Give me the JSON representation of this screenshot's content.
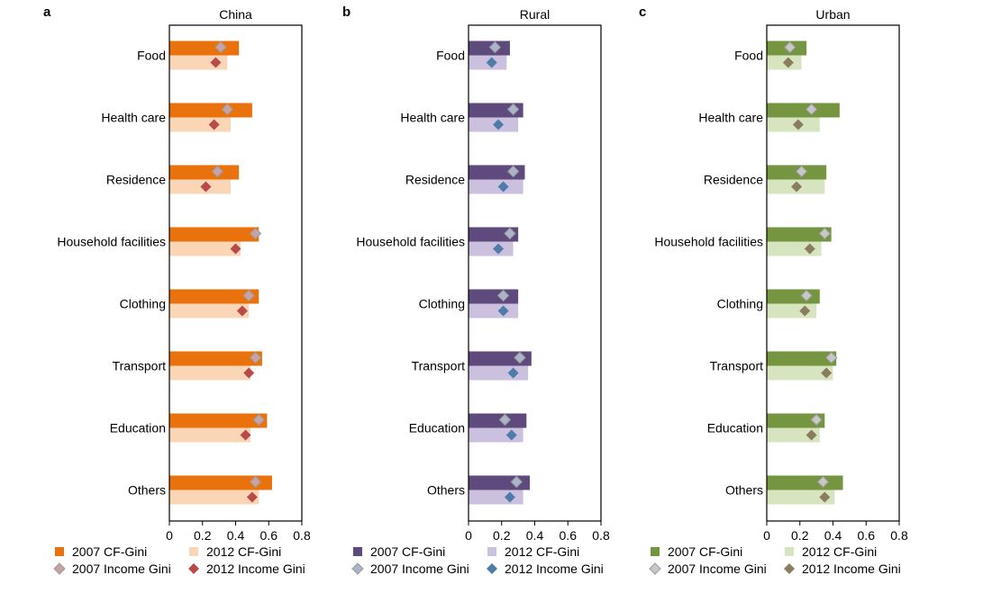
{
  "chart_data": [
    {
      "type": "bar",
      "panel_letter": "a",
      "title": "China",
      "orientation": "horizontal",
      "categories": [
        "Food",
        "Health care",
        "Residence",
        "Household facilities",
        "Clothing",
        "Transport",
        "Education",
        "Others"
      ],
      "xlim": [
        0,
        0.8
      ],
      "xticks": [
        "0",
        "0.2",
        "0.4",
        "0.6",
        "0.8"
      ],
      "grid": false,
      "legend_position": "bottom",
      "series": [
        {
          "name": "2007 CF-Gini",
          "kind": "bar",
          "color": "#e9720c",
          "values": [
            0.42,
            0.5,
            0.42,
            0.54,
            0.54,
            0.56,
            0.59,
            0.62
          ]
        },
        {
          "name": "2012 CF-Gini",
          "kind": "bar",
          "color": "#fad6b6",
          "values": [
            0.35,
            0.37,
            0.37,
            0.43,
            0.48,
            0.49,
            0.49,
            0.54
          ]
        },
        {
          "name": "2007 Income Gini",
          "kind": "marker",
          "color": "#c7a3a7",
          "values": [
            0.31,
            0.35,
            0.29,
            0.52,
            0.48,
            0.52,
            0.54,
            0.52
          ]
        },
        {
          "name": "2012 Income Gini",
          "kind": "marker",
          "color": "#b94a4a",
          "values": [
            0.28,
            0.27,
            0.22,
            0.4,
            0.44,
            0.48,
            0.46,
            0.5
          ]
        }
      ]
    },
    {
      "type": "bar",
      "panel_letter": "b",
      "title": "Rural",
      "orientation": "horizontal",
      "categories": [
        "Food",
        "Health care",
        "Residence",
        "Household facilities",
        "Clothing",
        "Transport",
        "Education",
        "Others"
      ],
      "xlim": [
        0,
        0.8
      ],
      "xticks": [
        "0",
        "0.2",
        "0.4",
        "0.6",
        "0.8"
      ],
      "grid": false,
      "legend_position": "bottom",
      "series": [
        {
          "name": "2007 CF-Gini",
          "kind": "bar",
          "color": "#5e4a7c",
          "values": [
            0.25,
            0.33,
            0.34,
            0.3,
            0.3,
            0.38,
            0.35,
            0.37
          ]
        },
        {
          "name": "2012 CF-Gini",
          "kind": "bar",
          "color": "#cbc0de",
          "values": [
            0.23,
            0.3,
            0.33,
            0.27,
            0.3,
            0.36,
            0.33,
            0.33
          ]
        },
        {
          "name": "2007 Income Gini",
          "kind": "marker",
          "color": "#aab5cb",
          "values": [
            0.16,
            0.27,
            0.27,
            0.25,
            0.21,
            0.31,
            0.22,
            0.29
          ]
        },
        {
          "name": "2012 Income Gini",
          "kind": "marker",
          "color": "#4f7ba8",
          "values": [
            0.14,
            0.18,
            0.21,
            0.18,
            0.21,
            0.27,
            0.26,
            0.25
          ]
        }
      ]
    },
    {
      "type": "bar",
      "panel_letter": "c",
      "title": "Urban",
      "orientation": "horizontal",
      "categories": [
        "Food",
        "Health care",
        "Residence",
        "Household facilities",
        "Clothing",
        "Transport",
        "Education",
        "Others"
      ],
      "xlim": [
        0,
        0.8
      ],
      "xticks": [
        "0",
        "0.2",
        "0.4",
        "0.6",
        "0.8"
      ],
      "grid": false,
      "legend_position": "bottom",
      "series": [
        {
          "name": "2007 CF-Gini",
          "kind": "bar",
          "color": "#759540",
          "values": [
            0.24,
            0.44,
            0.36,
            0.39,
            0.32,
            0.42,
            0.35,
            0.46
          ]
        },
        {
          "name": "2012 CF-Gini",
          "kind": "bar",
          "color": "#d7e4c0",
          "values": [
            0.21,
            0.32,
            0.35,
            0.33,
            0.3,
            0.4,
            0.32,
            0.41
          ]
        },
        {
          "name": "2007 Income Gini",
          "kind": "marker",
          "color": "#c7c7c7",
          "values": [
            0.14,
            0.27,
            0.21,
            0.35,
            0.24,
            0.39,
            0.3,
            0.34
          ]
        },
        {
          "name": "2012 Income Gini",
          "kind": "marker",
          "color": "#8a7d5e",
          "values": [
            0.13,
            0.19,
            0.18,
            0.26,
            0.23,
            0.36,
            0.27,
            0.35
          ]
        }
      ]
    }
  ]
}
